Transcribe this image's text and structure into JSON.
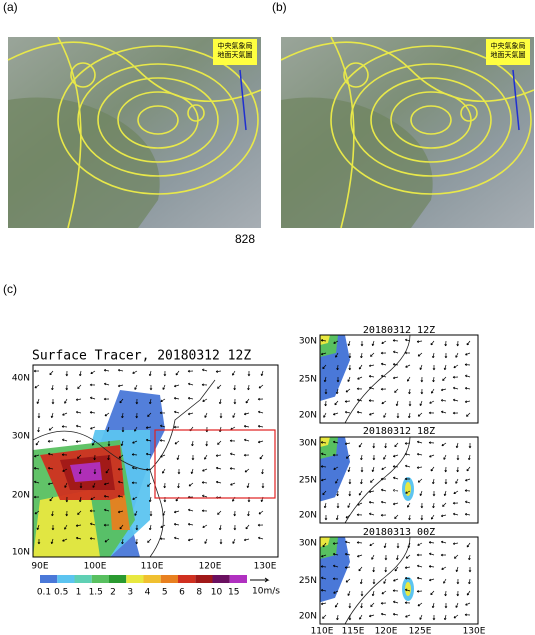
{
  "panel_a": {
    "label": "(a)",
    "map_title": [
      "中央氣象局",
      "地面天氣圖"
    ]
  },
  "panel_b": {
    "label": "(b)",
    "map_title": [
      "中央氣象局",
      "地面天氣圖"
    ]
  },
  "page_number": "828",
  "panel_c": {
    "label": "(c)",
    "main": {
      "title": "Surface Tracer, 20180312 12Z",
      "y_labels": [
        "40N",
        "30N",
        "20N",
        "10N"
      ],
      "x_labels": [
        "90E",
        "100E",
        "110E",
        "120E",
        "130E"
      ]
    },
    "colorbar": {
      "labels": [
        "0.1",
        "0.5",
        "1",
        "1.5",
        "2",
        "3",
        "4",
        "5",
        "6",
        "8",
        "10",
        "15"
      ],
      "colors": [
        "#4a78d8",
        "#5cc4f0",
        "#5fd0b4",
        "#58c060",
        "#2a9a30",
        "#e8e840",
        "#f0c030",
        "#e88020",
        "#d03020",
        "#a01818",
        "#6a1060",
        "#b030c0"
      ]
    },
    "wind_unit": "10m/s",
    "insets": [
      {
        "title": "20180312 12Z",
        "y_labels": [
          "30N",
          "25N",
          "20N"
        ]
      },
      {
        "title": "20180312 18Z",
        "y_labels": [
          "30N",
          "25N",
          "20N"
        ]
      },
      {
        "title": "20180313 00Z",
        "y_labels": [
          "30N",
          "25N",
          "20N"
        ]
      }
    ],
    "inset_x_labels": [
      "110E",
      "115E",
      "120E",
      "125E",
      "130E"
    ]
  }
}
